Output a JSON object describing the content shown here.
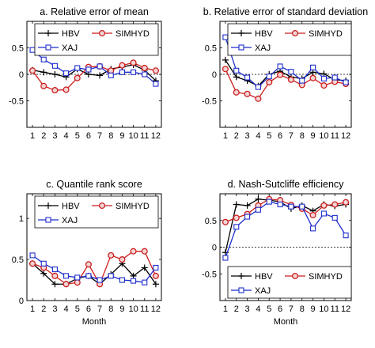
{
  "colors": {
    "HBV": "#000000",
    "SIMHYD": "#cc1f1f",
    "XAJ": "#1f2fcc",
    "SIMHYD_fill": "#f2d4d4"
  },
  "chart_data": [
    {
      "type": "line",
      "title": "a. Relative error of mean",
      "xlabel": "",
      "ylabel": "",
      "xticks": [
        "1",
        "2",
        "3",
        "4",
        "5",
        "6",
        "7",
        "8",
        "9",
        "10",
        "11",
        "12"
      ],
      "yticks": [
        "-0.5",
        "0",
        "0.5"
      ],
      "ylim": [
        -1,
        1
      ],
      "zero_line": true,
      "legend": {
        "placement": "top",
        "entries": [
          "HBV",
          "SIMHYD",
          "XAJ"
        ]
      },
      "x": [
        1,
        2,
        3,
        4,
        5,
        6,
        7,
        8,
        9,
        10,
        11,
        12
      ],
      "series": [
        {
          "name": "HBV",
          "marker": "plus",
          "values": [
            0.08,
            0.04,
            0.0,
            -0.05,
            0.1,
            0.0,
            -0.02,
            0.1,
            0.14,
            0.18,
            0.08,
            -0.12
          ]
        },
        {
          "name": "SIMHYD",
          "marker": "circle",
          "values": [
            0.07,
            -0.22,
            -0.3,
            -0.29,
            -0.07,
            0.14,
            0.15,
            0.07,
            0.17,
            0.22,
            0.12,
            0.07
          ]
        },
        {
          "name": "XAJ",
          "marker": "square",
          "values": [
            0.46,
            0.28,
            0.16,
            0.02,
            0.12,
            0.09,
            0.15,
            -0.02,
            0.04,
            0.04,
            0.0,
            -0.18
          ]
        }
      ]
    },
    {
      "type": "line",
      "title": "b. Relative error of standard deviation",
      "xlabel": "",
      "ylabel": "",
      "xticks": [
        "1",
        "2",
        "3",
        "4",
        "5",
        "6",
        "7",
        "8",
        "9",
        "10",
        "11",
        "12"
      ],
      "yticks": [
        "-0.5",
        "0",
        "0.5"
      ],
      "ylim": [
        -1,
        1
      ],
      "zero_line": true,
      "legend": {
        "placement": "top",
        "entries": [
          "HBV",
          "SIMHYD",
          "XAJ"
        ]
      },
      "x": [
        1,
        2,
        3,
        4,
        5,
        6,
        7,
        8,
        9,
        10,
        11,
        12
      ],
      "series": [
        {
          "name": "HBV",
          "marker": "plus",
          "values": [
            0.27,
            -0.05,
            -0.12,
            -0.22,
            0.0,
            0.06,
            -0.05,
            -0.08,
            0.04,
            0.01,
            -0.1,
            -0.12
          ]
        },
        {
          "name": "SIMHYD",
          "marker": "circle",
          "values": [
            0.1,
            -0.34,
            -0.37,
            -0.46,
            -0.15,
            -0.01,
            -0.1,
            -0.2,
            -0.07,
            -0.21,
            -0.14,
            -0.18
          ]
        },
        {
          "name": "XAJ",
          "marker": "square",
          "values": [
            0.7,
            0.07,
            -0.06,
            -0.24,
            -0.04,
            0.15,
            0.05,
            -0.12,
            0.13,
            -0.08,
            -0.06,
            -0.15
          ]
        }
      ]
    },
    {
      "type": "line",
      "title": "c. Quantile rank score",
      "xlabel": "Month",
      "ylabel": "",
      "xticks": [
        "1",
        "2",
        "3",
        "4",
        "5",
        "6",
        "7",
        "8",
        "9",
        "10",
        "11",
        "12"
      ],
      "yticks": [
        "0",
        "0.5",
        "1"
      ],
      "ylim": [
        0,
        1.3
      ],
      "zero_line": false,
      "legend": {
        "placement": "top",
        "entries": [
          "HBV",
          "SIMHYD",
          "XAJ"
        ]
      },
      "x": [
        1,
        2,
        3,
        4,
        5,
        6,
        7,
        8,
        9,
        10,
        11,
        12
      ],
      "series": [
        {
          "name": "HBV",
          "marker": "plus",
          "values": [
            0.45,
            0.33,
            0.2,
            0.2,
            0.27,
            0.3,
            0.2,
            0.32,
            0.45,
            0.3,
            0.4,
            0.2
          ]
        },
        {
          "name": "SIMHYD",
          "marker": "circle",
          "values": [
            0.45,
            0.4,
            0.3,
            0.2,
            0.22,
            0.44,
            0.2,
            0.55,
            0.5,
            0.6,
            0.6,
            0.3
          ]
        },
        {
          "name": "XAJ",
          "marker": "square",
          "values": [
            0.55,
            0.45,
            0.38,
            0.3,
            0.28,
            0.3,
            0.25,
            0.3,
            0.25,
            0.24,
            0.22,
            0.4
          ]
        }
      ]
    },
    {
      "type": "line",
      "title": "d. Nash-Sutcliffe efficiency",
      "xlabel": "Month",
      "ylabel": "",
      "xticks": [
        "1",
        "2",
        "3",
        "4",
        "5",
        "6",
        "7",
        "8",
        "9",
        "10",
        "11",
        "12"
      ],
      "yticks": [
        "-0.5",
        "0",
        "0.5"
      ],
      "ylim": [
        -1,
        1
      ],
      "zero_line": true,
      "legend": {
        "placement": "bottom",
        "entries": [
          "HBV",
          "SIMHYD",
          "XAJ"
        ]
      },
      "x": [
        1,
        2,
        3,
        4,
        5,
        6,
        7,
        8,
        9,
        10,
        11,
        12
      ],
      "series": [
        {
          "name": "HBV",
          "marker": "plus",
          "values": [
            -0.1,
            0.8,
            0.78,
            0.9,
            0.88,
            0.85,
            0.72,
            0.78,
            0.68,
            0.8,
            0.77,
            0.8
          ]
        },
        {
          "name": "SIMHYD",
          "marker": "circle",
          "values": [
            0.47,
            0.55,
            0.62,
            0.78,
            0.9,
            0.88,
            0.79,
            0.72,
            0.6,
            0.78,
            0.8,
            0.84
          ]
        },
        {
          "name": "XAJ",
          "marker": "square",
          "values": [
            -0.2,
            0.38,
            0.57,
            0.7,
            0.85,
            0.8,
            0.76,
            0.76,
            0.35,
            0.63,
            0.55,
            0.22
          ]
        }
      ]
    }
  ]
}
